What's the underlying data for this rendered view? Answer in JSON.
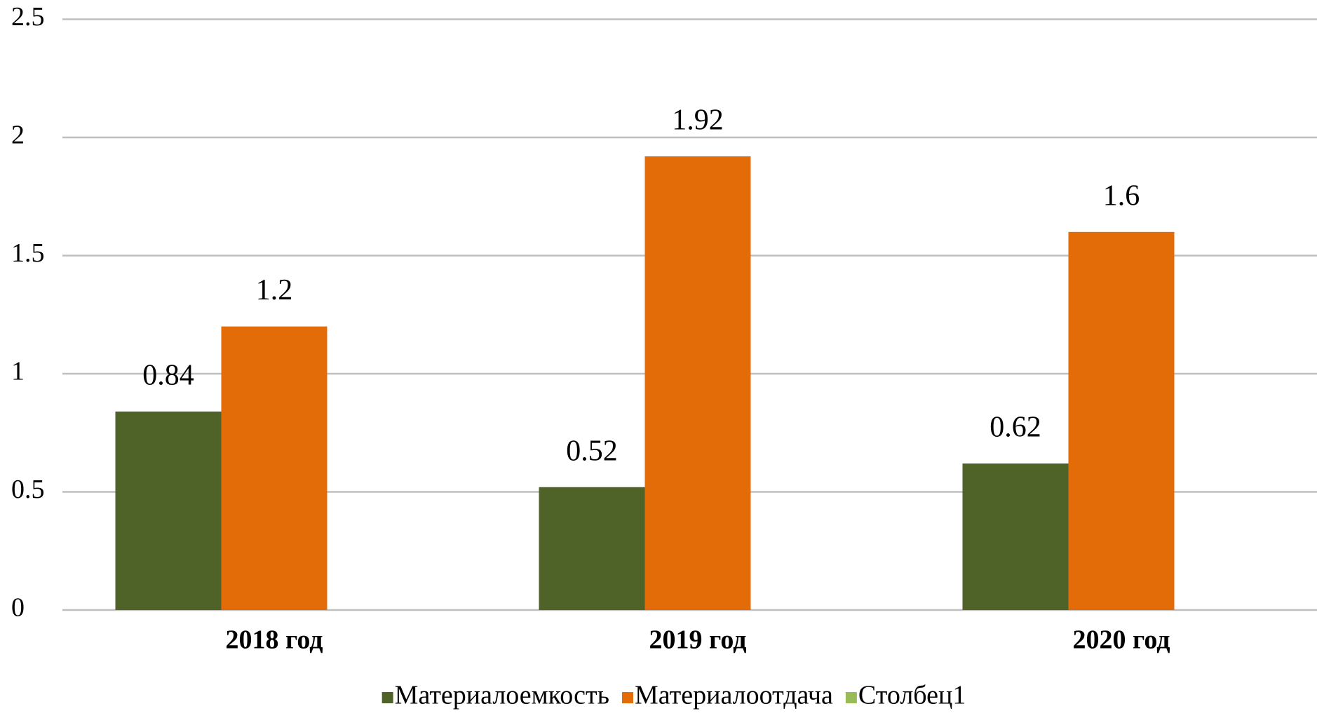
{
  "chart_data": {
    "type": "bar",
    "categories": [
      "2018 год",
      "2019 год",
      "2020 год"
    ],
    "series": [
      {
        "name": "Материалоемкость",
        "color": "#4f6228",
        "values": [
          0.84,
          0.52,
          0.62
        ]
      },
      {
        "name": "Материалоотдача",
        "color": "#e36c09",
        "values": [
          1.2,
          1.92,
          1.6
        ]
      },
      {
        "name": "Столбец1",
        "color": "#9bbb59",
        "values": [
          null,
          null,
          null
        ]
      }
    ],
    "ylim": [
      0,
      2.5
    ],
    "yticks": [
      0,
      0.5,
      1,
      1.5,
      2,
      2.5
    ],
    "grid": true,
    "legend": "bottom"
  }
}
